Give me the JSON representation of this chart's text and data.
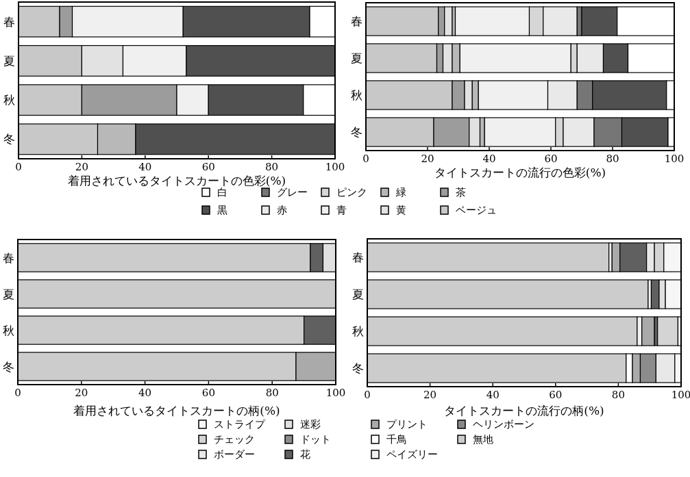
{
  "chart_data": [
    {
      "type": "bar",
      "orientation": "horizontal",
      "stacked": true,
      "xlabel": "着用されているタイトスカートの色彩(%)",
      "categories": [
        "春",
        "夏",
        "秋",
        "冬"
      ],
      "xlim": [
        0,
        100
      ],
      "xticks": [
        0,
        20,
        40,
        60,
        80,
        100
      ],
      "series": [
        {
          "color": "#c8c8c8",
          "values": [
            13,
            20,
            20,
            25
          ]
        },
        {
          "color": "#9c9c9c",
          "values": [
            4,
            null,
            30,
            null
          ]
        },
        {
          "color": "#e2e2e2",
          "values": [
            null,
            13,
            null,
            null
          ]
        },
        {
          "color": "#b8b8b8",
          "values": [
            null,
            null,
            null,
            12
          ]
        },
        {
          "color": "#f0f0f0",
          "values": [
            35,
            20,
            10,
            null
          ]
        },
        {
          "color": "#505050",
          "values": [
            40,
            47,
            30,
            63
          ]
        },
        {
          "color": "#ffffff",
          "values": [
            8,
            null,
            10,
            null
          ]
        }
      ]
    },
    {
      "type": "bar",
      "orientation": "horizontal",
      "stacked": true,
      "xlabel": "タイトスカートの流行の色彩(%)",
      "categories": [
        "春",
        "夏",
        "秋",
        "冬"
      ],
      "xlim": [
        0,
        100
      ],
      "xticks": [
        0,
        20,
        40,
        60,
        80,
        100
      ],
      "legend": "bottom",
      "series": [
        {
          "name": "ベージュ",
          "color": "#c8c8c8",
          "values": [
            23.5,
            23,
            28,
            22
          ]
        },
        {
          "name": "茶",
          "color": "#9c9c9c",
          "values": [
            2,
            2,
            4,
            11.5
          ]
        },
        {
          "name": "黄",
          "color": "#e2e2e2",
          "values": [
            2.5,
            3,
            2.5,
            3.5
          ]
        },
        {
          "name": "緑",
          "color": "#b8b8b8",
          "values": [
            1,
            2.5,
            2,
            1.5
          ]
        },
        {
          "name": "青",
          "color": "#f0f0f0",
          "values": [
            24,
            36,
            22.5,
            23
          ]
        },
        {
          "name": "ピンク",
          "color": "#d6d6d6",
          "values": [
            4.5,
            2,
            null,
            2.5
          ]
        },
        {
          "name": "赤",
          "color": "#e9e9e9",
          "values": [
            11,
            8.5,
            9.5,
            10
          ]
        },
        {
          "name": "グレー",
          "color": "#767676",
          "values": [
            1.5,
            null,
            5,
            9
          ]
        },
        {
          "name": "黒",
          "color": "#505050",
          "values": [
            11.5,
            8,
            24,
            15
          ]
        },
        {
          "name": "白",
          "color": "#ffffff",
          "values": [
            18.5,
            15,
            2.5,
            2
          ]
        }
      ]
    },
    {
      "type": "bar",
      "orientation": "horizontal",
      "stacked": true,
      "xlabel": "着用されているタイトスカートの柄(%)",
      "categories": [
        "春",
        "夏",
        "秋",
        "冬"
      ],
      "xlim": [
        0,
        100
      ],
      "xticks": [
        0,
        20,
        40,
        60,
        80,
        100
      ],
      "series": [
        {
          "color": "#cccccc",
          "values": [
            92,
            100,
            90,
            87.5
          ]
        },
        {
          "color": "#aaaaaa",
          "values": [
            null,
            null,
            null,
            12.5
          ]
        },
        {
          "color": "#606060",
          "values": [
            4,
            null,
            10,
            null
          ]
        },
        {
          "color": "#e0e0e0",
          "values": [
            4,
            null,
            null,
            null
          ]
        }
      ]
    },
    {
      "type": "bar",
      "orientation": "horizontal",
      "stacked": true,
      "xlabel": "タイトスカートの流行の柄(%)",
      "categories": [
        "春",
        "夏",
        "秋",
        "冬"
      ],
      "xlim": [
        0,
        100
      ],
      "xticks": [
        0,
        20,
        40,
        60,
        80,
        100
      ],
      "legend": "bottom",
      "series": [
        {
          "name": "無地",
          "color": "#cccccc",
          "values": [
            77,
            89.5,
            86,
            82.5
          ]
        },
        {
          "name": "ヘリンボーン",
          "color": "#888888",
          "values": [
            null,
            null,
            null,
            null
          ]
        },
        {
          "name": "ペイズリー",
          "color": "#f0f0f0",
          "values": [
            1,
            1,
            1.5,
            null
          ]
        },
        {
          "name": "千鳥",
          "color": "#ffffff",
          "values": [
            null,
            null,
            null,
            2
          ]
        },
        {
          "name": "プリント",
          "color": "#aaaaaa",
          "values": [
            2.5,
            null,
            4,
            2.5
          ]
        },
        {
          "name": "花",
          "color": "#606060",
          "values": [
            8.5,
            2.5,
            1,
            null
          ]
        },
        {
          "name": "ドット",
          "color": "#8c8c8c",
          "values": [
            null,
            null,
            null,
            5
          ]
        },
        {
          "name": "迷彩",
          "color": "#e0e0e0",
          "values": [
            null,
            2,
            null,
            null
          ]
        },
        {
          "name": "ボーダー",
          "color": "#e8e8e8",
          "values": [
            2.5,
            null,
            null,
            6
          ]
        },
        {
          "name": "チェック",
          "color": "#d4d4d4",
          "values": [
            3,
            null,
            6.5,
            null
          ]
        },
        {
          "name": "ストライプ",
          "color": "#f6f6f6",
          "values": [
            5.5,
            5,
            1,
            2
          ]
        }
      ]
    }
  ]
}
